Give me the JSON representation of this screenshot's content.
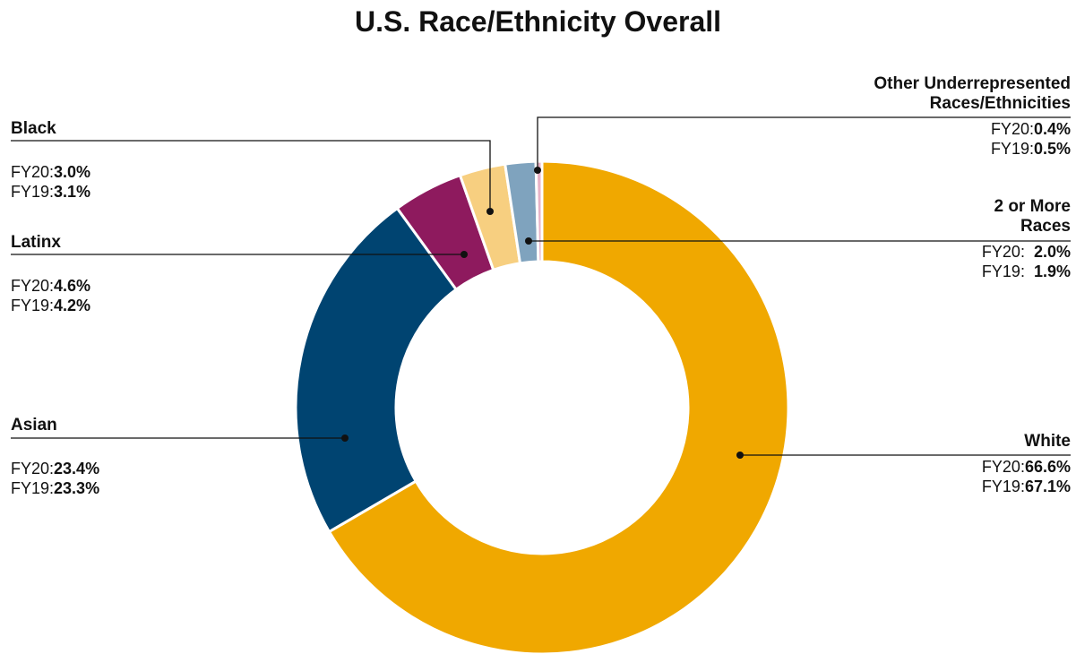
{
  "chart_data": {
    "type": "donut",
    "title": "U.S. Race/Ethnicity Overall",
    "categories": [
      "White",
      "Asian",
      "Latinx",
      "Black",
      "2 or More Races",
      "Other Underrepresented Races/Ethnicities"
    ],
    "colors": [
      "#f0a800",
      "#004471",
      "#8e1a5e",
      "#f7cf80",
      "#7fa3be",
      "#e8b3c7"
    ],
    "series": [
      {
        "name": "FY20:",
        "values": [
          66.6,
          23.4,
          4.6,
          3.0,
          2.0,
          0.4
        ],
        "value_labels": [
          "66.6%",
          "23.4%",
          "4.6%",
          "3.0%",
          "2.0%",
          "0.4%"
        ]
      },
      {
        "name": "FY19:",
        "values": [
          67.1,
          23.3,
          4.2,
          3.1,
          1.9,
          0.5
        ],
        "value_labels": [
          "67.1%",
          "23.3%",
          "4.2%",
          "3.1%",
          "1.9%",
          "0.5%"
        ]
      }
    ]
  }
}
